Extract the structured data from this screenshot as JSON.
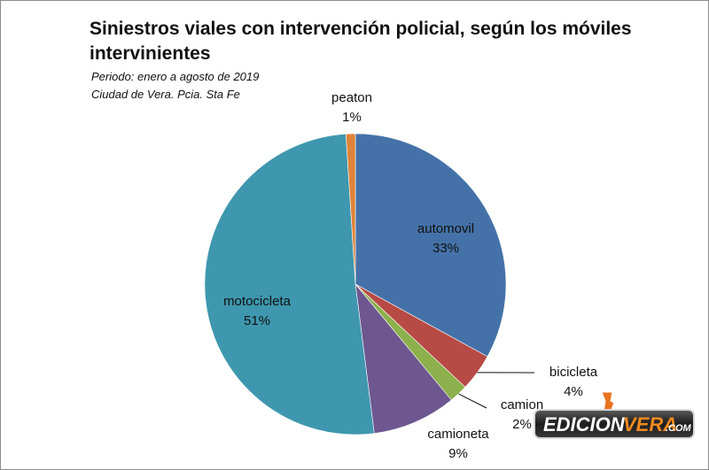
{
  "chart_data": {
    "type": "pie",
    "title": "Siniestros viales con intervención policial, según los  móviles intervinientes",
    "subtitle_lines": [
      "Periodo: enero a agosto de 2019",
      "Ciudad de Vera. Pcia. Sta Fe"
    ],
    "slices": [
      {
        "label": "automovil",
        "value": 33,
        "display": "33%",
        "color": "#4472a8"
      },
      {
        "label": "bicicleta",
        "value": 4,
        "display": "4%",
        "color": "#b84a45"
      },
      {
        "label": "camion",
        "value": 2,
        "display": "2%",
        "color": "#8cb04b"
      },
      {
        "label": "camioneta",
        "value": 9,
        "display": "9%",
        "color": "#6e5790"
      },
      {
        "label": "motocicleta",
        "value": 51,
        "display": "51%",
        "color": "#3e97ae"
      },
      {
        "label": "peaton",
        "value": 1,
        "display": "1%",
        "color": "#e0843a"
      }
    ]
  },
  "watermark": {
    "text_left": "EDICION",
    "text_right": "VERA",
    "suffix": ".COM"
  }
}
